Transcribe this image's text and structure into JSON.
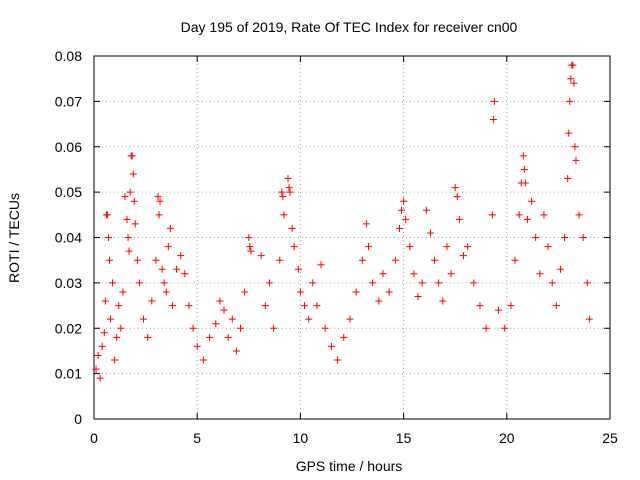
{
  "chart_data": {
    "type": "scatter",
    "title": "Day 195 of 2019, Rate Of TEC Index for receiver cn00",
    "xlabel": "GPS time / hours",
    "ylabel": "ROTI / TECUs",
    "xlim": [
      0,
      25
    ],
    "ylim": [
      0,
      0.08
    ],
    "xticks": [
      0,
      5,
      10,
      15,
      20,
      25
    ],
    "yticks": [
      0,
      0.01,
      0.02,
      0.03,
      0.04,
      0.05,
      0.06,
      0.07,
      0.08
    ],
    "xtick_labels": [
      "0",
      "5",
      "10",
      "15",
      "20",
      "25"
    ],
    "ytick_labels": [
      "0",
      "0.01",
      "0.02",
      "0.03",
      "0.04",
      "0.05",
      "0.06",
      "0.07",
      "0.08"
    ],
    "grid": true,
    "marker": "+",
    "color": "#ff0000",
    "series": [
      {
        "name": "ROTI",
        "points": [
          [
            0.1,
            0.011
          ],
          [
            0.2,
            0.014
          ],
          [
            0.3,
            0.009
          ],
          [
            0.4,
            0.016
          ],
          [
            0.5,
            0.019
          ],
          [
            0.55,
            0.026
          ],
          [
            0.6,
            0.045
          ],
          [
            0.65,
            0.045
          ],
          [
            0.7,
            0.04
          ],
          [
            0.75,
            0.035
          ],
          [
            0.8,
            0.022
          ],
          [
            0.9,
            0.03
          ],
          [
            1.0,
            0.013
          ],
          [
            1.1,
            0.018
          ],
          [
            1.2,
            0.025
          ],
          [
            1.3,
            0.02
          ],
          [
            1.4,
            0.028
          ],
          [
            1.5,
            0.049
          ],
          [
            1.6,
            0.044
          ],
          [
            1.65,
            0.04
          ],
          [
            1.7,
            0.037
          ],
          [
            1.75,
            0.05
          ],
          [
            1.8,
            0.058
          ],
          [
            1.85,
            0.058
          ],
          [
            1.9,
            0.054
          ],
          [
            1.95,
            0.048
          ],
          [
            2.0,
            0.043
          ],
          [
            2.1,
            0.035
          ],
          [
            2.2,
            0.03
          ],
          [
            2.4,
            0.022
          ],
          [
            2.6,
            0.018
          ],
          [
            2.8,
            0.026
          ],
          [
            3.0,
            0.035
          ],
          [
            3.1,
            0.049
          ],
          [
            3.15,
            0.045
          ],
          [
            3.2,
            0.048
          ],
          [
            3.3,
            0.033
          ],
          [
            3.4,
            0.03
          ],
          [
            3.5,
            0.028
          ],
          [
            3.6,
            0.038
          ],
          [
            3.7,
            0.042
          ],
          [
            3.8,
            0.025
          ],
          [
            4.0,
            0.033
          ],
          [
            4.2,
            0.036
          ],
          [
            4.4,
            0.032
          ],
          [
            4.6,
            0.025
          ],
          [
            4.8,
            0.02
          ],
          [
            5.0,
            0.016
          ],
          [
            5.3,
            0.013
          ],
          [
            5.6,
            0.018
          ],
          [
            5.9,
            0.021
          ],
          [
            6.1,
            0.026
          ],
          [
            6.3,
            0.024
          ],
          [
            6.5,
            0.018
          ],
          [
            6.7,
            0.022
          ],
          [
            6.9,
            0.015
          ],
          [
            7.1,
            0.02
          ],
          [
            7.3,
            0.028
          ],
          [
            7.5,
            0.04
          ],
          [
            7.55,
            0.038
          ],
          [
            7.6,
            0.037
          ],
          [
            8.1,
            0.036
          ],
          [
            8.3,
            0.025
          ],
          [
            8.5,
            0.03
          ],
          [
            8.7,
            0.02
          ],
          [
            9.0,
            0.035
          ],
          [
            9.1,
            0.05
          ],
          [
            9.15,
            0.049
          ],
          [
            9.2,
            0.045
          ],
          [
            9.4,
            0.053
          ],
          [
            9.45,
            0.051
          ],
          [
            9.5,
            0.05
          ],
          [
            9.6,
            0.042
          ],
          [
            9.7,
            0.038
          ],
          [
            9.9,
            0.033
          ],
          [
            10.0,
            0.028
          ],
          [
            10.2,
            0.025
          ],
          [
            10.4,
            0.022
          ],
          [
            10.6,
            0.03
          ],
          [
            10.8,
            0.025
          ],
          [
            11.0,
            0.034
          ],
          [
            11.2,
            0.02
          ],
          [
            11.5,
            0.016
          ],
          [
            11.8,
            0.013
          ],
          [
            12.1,
            0.018
          ],
          [
            12.4,
            0.022
          ],
          [
            12.7,
            0.028
          ],
          [
            13.0,
            0.035
          ],
          [
            13.2,
            0.043
          ],
          [
            13.3,
            0.038
          ],
          [
            13.5,
            0.03
          ],
          [
            13.8,
            0.026
          ],
          [
            14.0,
            0.032
          ],
          [
            14.3,
            0.028
          ],
          [
            14.6,
            0.035
          ],
          [
            14.8,
            0.042
          ],
          [
            14.9,
            0.046
          ],
          [
            15.0,
            0.048
          ],
          [
            15.1,
            0.044
          ],
          [
            15.3,
            0.038
          ],
          [
            15.5,
            0.032
          ],
          [
            15.7,
            0.027
          ],
          [
            15.9,
            0.03
          ],
          [
            16.1,
            0.046
          ],
          [
            16.3,
            0.041
          ],
          [
            16.5,
            0.035
          ],
          [
            16.7,
            0.03
          ],
          [
            16.9,
            0.026
          ],
          [
            17.1,
            0.038
          ],
          [
            17.3,
            0.032
          ],
          [
            17.5,
            0.051
          ],
          [
            17.6,
            0.049
          ],
          [
            17.7,
            0.044
          ],
          [
            17.9,
            0.036
          ],
          [
            18.1,
            0.038
          ],
          [
            18.4,
            0.03
          ],
          [
            18.7,
            0.025
          ],
          [
            19.0,
            0.02
          ],
          [
            19.3,
            0.045
          ],
          [
            19.35,
            0.066
          ],
          [
            19.4,
            0.07
          ],
          [
            19.6,
            0.024
          ],
          [
            19.9,
            0.02
          ],
          [
            20.2,
            0.025
          ],
          [
            20.4,
            0.035
          ],
          [
            20.6,
            0.045
          ],
          [
            20.7,
            0.052
          ],
          [
            20.8,
            0.058
          ],
          [
            20.85,
            0.055
          ],
          [
            20.9,
            0.052
          ],
          [
            21.0,
            0.044
          ],
          [
            21.2,
            0.048
          ],
          [
            21.4,
            0.04
          ],
          [
            21.6,
            0.032
          ],
          [
            21.8,
            0.045
          ],
          [
            22.0,
            0.038
          ],
          [
            22.2,
            0.03
          ],
          [
            22.4,
            0.025
          ],
          [
            22.6,
            0.033
          ],
          [
            22.8,
            0.04
          ],
          [
            22.95,
            0.053
          ],
          [
            23.0,
            0.063
          ],
          [
            23.05,
            0.07
          ],
          [
            23.1,
            0.075
          ],
          [
            23.15,
            0.078
          ],
          [
            23.2,
            0.078
          ],
          [
            23.25,
            0.074
          ],
          [
            23.3,
            0.06
          ],
          [
            23.35,
            0.057
          ],
          [
            23.5,
            0.045
          ],
          [
            23.7,
            0.04
          ],
          [
            23.9,
            0.03
          ],
          [
            24.0,
            0.022
          ]
        ]
      }
    ]
  }
}
